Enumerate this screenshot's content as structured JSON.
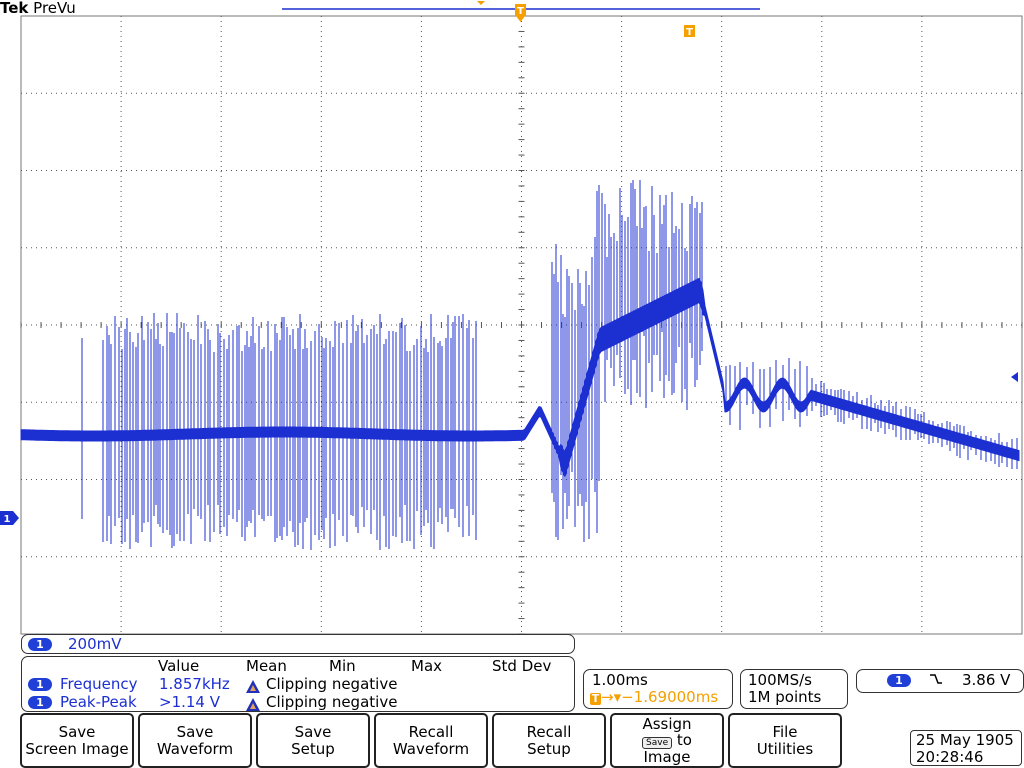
{
  "brand": {
    "maker": "Tek",
    "mode": "PreVu"
  },
  "channel": {
    "number": "1",
    "scale": "200mV",
    "color": "#1c2fd1"
  },
  "trigger_marker": "T",
  "measurements": {
    "headers": [
      "Value",
      "Mean",
      "Min",
      "Max",
      "Std Dev"
    ],
    "rows": [
      {
        "label": "Frequency",
        "value": "1.857kHz",
        "status": "Clipping negative"
      },
      {
        "label": "Peak-Peak",
        "value": ">1.14 V",
        "status": "Clipping negative"
      }
    ]
  },
  "timebase": {
    "scale": "1.00ms",
    "trigger_delay": "−1.69000ms"
  },
  "acquisition": {
    "rate": "100MS/s",
    "record": "1M points"
  },
  "trigger": {
    "source": "1",
    "slope": "falling",
    "level": "3.86 V"
  },
  "softkeys": [
    {
      "line1": "Save",
      "line2": "Screen Image"
    },
    {
      "line1": "Save",
      "line2": "Waveform"
    },
    {
      "line1": "Save",
      "line2": "Setup"
    },
    {
      "line1": "Recall",
      "line2": "Waveform"
    },
    {
      "line1": "Recall",
      "line2": "Setup"
    },
    {
      "line1": "Assign",
      "badge": "Save",
      "line2": "to",
      "line3": "Image"
    },
    {
      "line1": "File",
      "line2": "Utilities"
    }
  ],
  "datetime": {
    "date": "25 May 1905",
    "time": "20:28:46"
  },
  "colors": {
    "trace": "#1c2fd1",
    "trigger_accent": "#f5a000",
    "grid": "#555555"
  }
}
